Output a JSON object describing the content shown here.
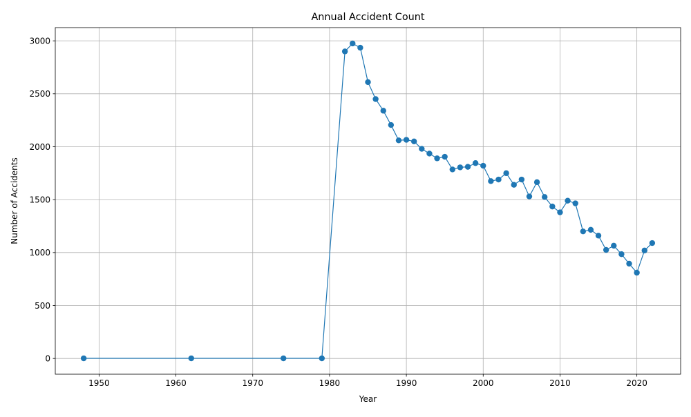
{
  "chart_data": {
    "type": "line",
    "title": "Annual Accident Count",
    "xlabel": "Year",
    "ylabel": "Number of Accidents",
    "xlim": [
      1944.3,
      2025.7
    ],
    "ylim": [
      -148.8,
      3124.8
    ],
    "xticks": [
      1950,
      1960,
      1970,
      1980,
      1990,
      2000,
      2010,
      2020
    ],
    "yticks": [
      0,
      500,
      1000,
      1500,
      2000,
      2500,
      3000
    ],
    "grid": true,
    "line_color": "#1f77b4",
    "series": [
      {
        "marker": "circle",
        "x": [
          1948,
          1962,
          1974,
          1979,
          1982,
          1983,
          1984,
          1985,
          1986,
          1987,
          1988,
          1989,
          1990,
          1991,
          1992,
          1993,
          1994,
          1995,
          1996,
          1997,
          1998,
          1999,
          2000,
          2001,
          2002,
          2003,
          2004,
          2005,
          2006,
          2007,
          2008,
          2009,
          2010,
          2011,
          2012,
          2013,
          2014,
          2015,
          2016,
          2017,
          2018,
          2019,
          2020,
          2021,
          2022
        ],
        "y": [
          1,
          1,
          1,
          1,
          2900,
          2975,
          2935,
          2610,
          2450,
          2340,
          2205,
          2060,
          2065,
          2050,
          1980,
          1935,
          1890,
          1905,
          1785,
          1805,
          1810,
          1845,
          1820,
          1675,
          1690,
          1750,
          1640,
          1690,
          1530,
          1665,
          1525,
          1435,
          1380,
          1490,
          1465,
          1200,
          1215,
          1160,
          1025,
          1065,
          985,
          895,
          810,
          1020,
          1090
        ]
      }
    ]
  }
}
